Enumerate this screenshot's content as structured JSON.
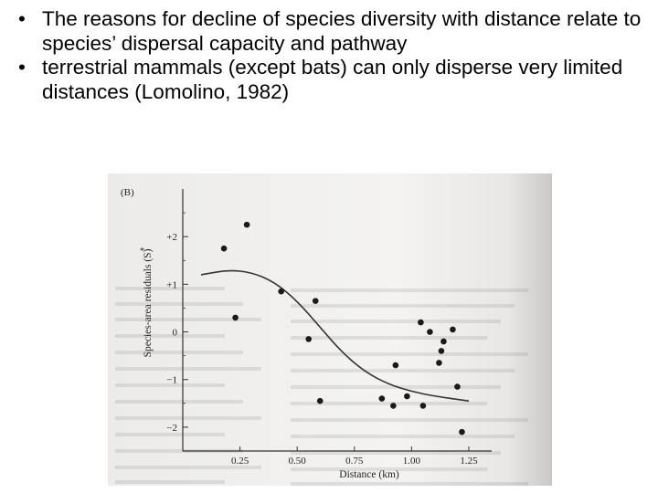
{
  "bullets": [
    {
      "text": "The reasons for decline of species diversity with distance relate to species’ dispersal capacity and pathway"
    },
    {
      "text": "terrestrial mammals (except bats) can only disperse very limited distances (Lomolino, 1982)"
    }
  ],
  "chart_data": {
    "type": "scatter",
    "panel_label": "(B)",
    "xlabel": "Distance (km)",
    "ylabel": "Species-area residuals (S)",
    "ylabel_marker": "*",
    "xlim": [
      0.0,
      1.35
    ],
    "ylim": [
      -2.5,
      3.0
    ],
    "x_ticks": [
      0.25,
      0.5,
      0.75,
      1.0,
      1.25
    ],
    "x_tick_labels": [
      "0.25",
      "0.50",
      "0.75",
      "1.00",
      "1.25"
    ],
    "y_ticks": [
      2,
      1,
      0,
      -1,
      -2
    ],
    "y_tick_labels": [
      "+2",
      "+1",
      "0",
      "−1",
      "−2"
    ],
    "grid": false,
    "points": [
      {
        "x": 0.18,
        "y": 1.75
      },
      {
        "x": 0.28,
        "y": 2.25
      },
      {
        "x": 0.23,
        "y": 0.3
      },
      {
        "x": 0.43,
        "y": 0.85
      },
      {
        "x": 0.58,
        "y": 0.65
      },
      {
        "x": 0.55,
        "y": -0.15
      },
      {
        "x": 0.6,
        "y": -1.45
      },
      {
        "x": 0.87,
        "y": -1.4
      },
      {
        "x": 0.92,
        "y": -1.55
      },
      {
        "x": 0.93,
        "y": -0.7
      },
      {
        "x": 0.98,
        "y": -1.35
      },
      {
        "x": 1.05,
        "y": -1.55
      },
      {
        "x": 1.04,
        "y": 0.2
      },
      {
        "x": 1.08,
        "y": 0.0
      },
      {
        "x": 1.14,
        "y": -0.2
      },
      {
        "x": 1.13,
        "y": -0.4
      },
      {
        "x": 1.12,
        "y": -0.65
      },
      {
        "x": 1.18,
        "y": 0.05
      },
      {
        "x": 1.2,
        "y": -1.15
      },
      {
        "x": 1.22,
        "y": -2.1
      }
    ],
    "fit_curve": [
      {
        "x": 0.08,
        "y": 1.2
      },
      {
        "x": 0.2,
        "y": 1.3
      },
      {
        "x": 0.3,
        "y": 1.25
      },
      {
        "x": 0.4,
        "y": 1.05
      },
      {
        "x": 0.5,
        "y": 0.65
      },
      {
        "x": 0.6,
        "y": 0.1
      },
      {
        "x": 0.7,
        "y": -0.45
      },
      {
        "x": 0.8,
        "y": -0.85
      },
      {
        "x": 0.9,
        "y": -1.1
      },
      {
        "x": 1.0,
        "y": -1.25
      },
      {
        "x": 1.1,
        "y": -1.35
      },
      {
        "x": 1.25,
        "y": -1.45
      }
    ]
  }
}
